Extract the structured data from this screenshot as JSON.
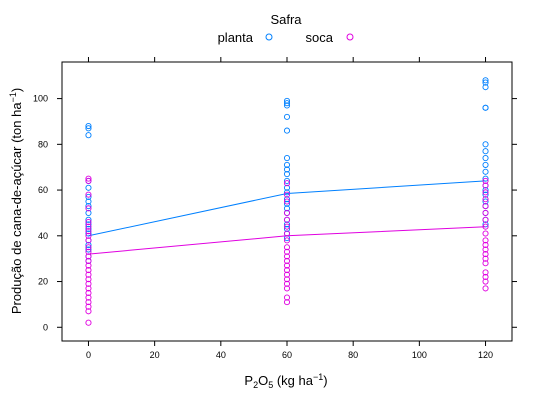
{
  "chart_data": {
    "type": "scatter",
    "xlabel": "P2O5 (kg ha-1)",
    "ylabel": "Produção de cana-de-açúcar (ton ha-1)",
    "xlim": [
      -8,
      128
    ],
    "ylim": [
      -6,
      116
    ],
    "xticks": [
      0,
      20,
      40,
      60,
      80,
      100,
      120
    ],
    "yticks": [
      0,
      20,
      40,
      60,
      80,
      100
    ],
    "legend": {
      "title": "Safra",
      "position": "top"
    },
    "series": [
      {
        "name": "planta",
        "color": "#0080ff",
        "points": [
          [
            0,
            88
          ],
          [
            0,
            87
          ],
          [
            0,
            84
          ],
          [
            0,
            64
          ],
          [
            0,
            61
          ],
          [
            0,
            57
          ],
          [
            0,
            55
          ],
          [
            0,
            53
          ],
          [
            0,
            50
          ],
          [
            0,
            47
          ],
          [
            0,
            45
          ],
          [
            0,
            43
          ],
          [
            0,
            41
          ],
          [
            0,
            38
          ],
          [
            0,
            36
          ],
          [
            0,
            34
          ],
          [
            0,
            31
          ],
          [
            0,
            29
          ],
          [
            60,
            99
          ],
          [
            60,
            98
          ],
          [
            60,
            97
          ],
          [
            60,
            92
          ],
          [
            60,
            86
          ],
          [
            60,
            74
          ],
          [
            60,
            71
          ],
          [
            60,
            69
          ],
          [
            60,
            67
          ],
          [
            60,
            64
          ],
          [
            60,
            61
          ],
          [
            60,
            59
          ],
          [
            60,
            56
          ],
          [
            60,
            54
          ],
          [
            60,
            52
          ],
          [
            60,
            50
          ],
          [
            60,
            47
          ],
          [
            60,
            45
          ],
          [
            60,
            43
          ],
          [
            60,
            41
          ],
          [
            60,
            39
          ],
          [
            120,
            108
          ],
          [
            120,
            107
          ],
          [
            120,
            105
          ],
          [
            120,
            96
          ],
          [
            120,
            96
          ],
          [
            120,
            80
          ],
          [
            120,
            77
          ],
          [
            120,
            74
          ],
          [
            120,
            71
          ],
          [
            120,
            68
          ],
          [
            120,
            65
          ],
          [
            120,
            62
          ],
          [
            120,
            60
          ],
          [
            120,
            58
          ],
          [
            120,
            55
          ],
          [
            120,
            53
          ],
          [
            120,
            50
          ],
          [
            120,
            47
          ],
          [
            120,
            45
          ]
        ],
        "fit": [
          [
            0,
            40
          ],
          [
            60,
            58.5
          ],
          [
            120,
            64
          ]
        ]
      },
      {
        "name": "soca",
        "color": "#e000e0",
        "points": [
          [
            0,
            65
          ],
          [
            0,
            64
          ],
          [
            0,
            58
          ],
          [
            0,
            52
          ],
          [
            0,
            46
          ],
          [
            0,
            44
          ],
          [
            0,
            42
          ],
          [
            0,
            40
          ],
          [
            0,
            38
          ],
          [
            0,
            35
          ],
          [
            0,
            33
          ],
          [
            0,
            31
          ],
          [
            0,
            29
          ],
          [
            0,
            27
          ],
          [
            0,
            25
          ],
          [
            0,
            23
          ],
          [
            0,
            21
          ],
          [
            0,
            19
          ],
          [
            0,
            17
          ],
          [
            0,
            15
          ],
          [
            0,
            13
          ],
          [
            0,
            11
          ],
          [
            0,
            9
          ],
          [
            0,
            7
          ],
          [
            0,
            2
          ],
          [
            60,
            63
          ],
          [
            60,
            58
          ],
          [
            60,
            55
          ],
          [
            60,
            50
          ],
          [
            60,
            47
          ],
          [
            60,
            44
          ],
          [
            60,
            41
          ],
          [
            60,
            38
          ],
          [
            60,
            35
          ],
          [
            60,
            33
          ],
          [
            60,
            31
          ],
          [
            60,
            29
          ],
          [
            60,
            27
          ],
          [
            60,
            25
          ],
          [
            60,
            23
          ],
          [
            60,
            21
          ],
          [
            60,
            19
          ],
          [
            60,
            17
          ],
          [
            60,
            13
          ],
          [
            60,
            11
          ],
          [
            120,
            64
          ],
          [
            120,
            62
          ],
          [
            120,
            59
          ],
          [
            120,
            56
          ],
          [
            120,
            53
          ],
          [
            120,
            50
          ],
          [
            120,
            47
          ],
          [
            120,
            44
          ],
          [
            120,
            41
          ],
          [
            120,
            38
          ],
          [
            120,
            36
          ],
          [
            120,
            34
          ],
          [
            120,
            32
          ],
          [
            120,
            30
          ],
          [
            120,
            28
          ],
          [
            120,
            24
          ],
          [
            120,
            22
          ],
          [
            120,
            20
          ],
          [
            120,
            17
          ]
        ],
        "fit": [
          [
            0,
            32
          ],
          [
            60,
            40
          ],
          [
            120,
            44
          ]
        ]
      }
    ]
  }
}
